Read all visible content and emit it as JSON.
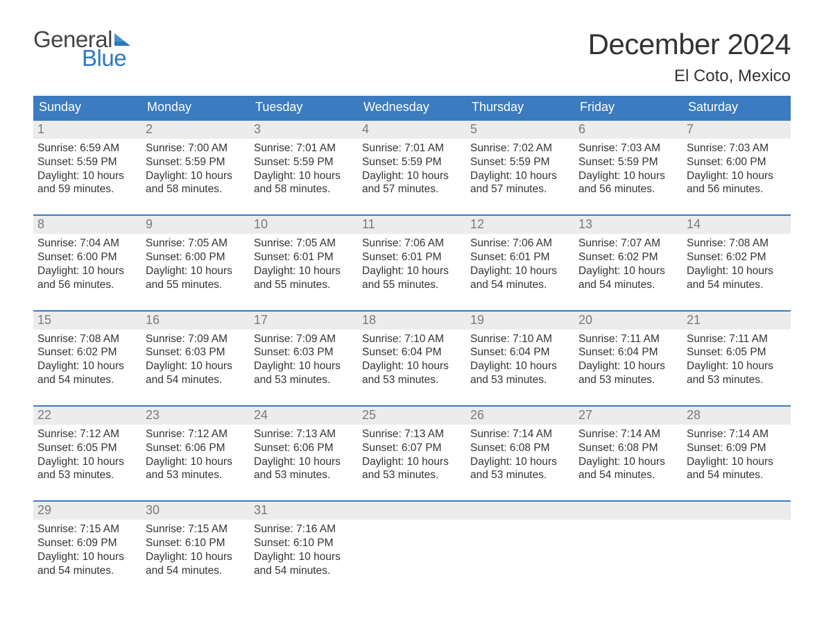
{
  "logo": {
    "text1": "General",
    "text2": "Blue",
    "icon_color": "#2c78bd",
    "text1_color": "#444444"
  },
  "title": "December 2024",
  "subtitle": "El Coto, Mexico",
  "colors": {
    "header_bg": "#3b7bbf",
    "header_text": "#ffffff",
    "week_border": "#3b7bbf",
    "daynum_bg": "#ececec",
    "daynum_text": "#7a7a7a",
    "body_text": "#333333",
    "background": "#ffffff"
  },
  "typography": {
    "title_fontsize": 42,
    "subtitle_fontsize": 24,
    "weekday_fontsize": 18,
    "daynum_fontsize": 18,
    "cell_fontsize": 15.5,
    "logo_fontsize": 33
  },
  "weekdays": [
    "Sunday",
    "Monday",
    "Tuesday",
    "Wednesday",
    "Thursday",
    "Friday",
    "Saturday"
  ],
  "weeks": [
    [
      {
        "n": "1",
        "sunrise": "Sunrise: 6:59 AM",
        "sunset": "Sunset: 5:59 PM",
        "dl1": "Daylight: 10 hours",
        "dl2": "and 59 minutes."
      },
      {
        "n": "2",
        "sunrise": "Sunrise: 7:00 AM",
        "sunset": "Sunset: 5:59 PM",
        "dl1": "Daylight: 10 hours",
        "dl2": "and 58 minutes."
      },
      {
        "n": "3",
        "sunrise": "Sunrise: 7:01 AM",
        "sunset": "Sunset: 5:59 PM",
        "dl1": "Daylight: 10 hours",
        "dl2": "and 58 minutes."
      },
      {
        "n": "4",
        "sunrise": "Sunrise: 7:01 AM",
        "sunset": "Sunset: 5:59 PM",
        "dl1": "Daylight: 10 hours",
        "dl2": "and 57 minutes."
      },
      {
        "n": "5",
        "sunrise": "Sunrise: 7:02 AM",
        "sunset": "Sunset: 5:59 PM",
        "dl1": "Daylight: 10 hours",
        "dl2": "and 57 minutes."
      },
      {
        "n": "6",
        "sunrise": "Sunrise: 7:03 AM",
        "sunset": "Sunset: 5:59 PM",
        "dl1": "Daylight: 10 hours",
        "dl2": "and 56 minutes."
      },
      {
        "n": "7",
        "sunrise": "Sunrise: 7:03 AM",
        "sunset": "Sunset: 6:00 PM",
        "dl1": "Daylight: 10 hours",
        "dl2": "and 56 minutes."
      }
    ],
    [
      {
        "n": "8",
        "sunrise": "Sunrise: 7:04 AM",
        "sunset": "Sunset: 6:00 PM",
        "dl1": "Daylight: 10 hours",
        "dl2": "and 56 minutes."
      },
      {
        "n": "9",
        "sunrise": "Sunrise: 7:05 AM",
        "sunset": "Sunset: 6:00 PM",
        "dl1": "Daylight: 10 hours",
        "dl2": "and 55 minutes."
      },
      {
        "n": "10",
        "sunrise": "Sunrise: 7:05 AM",
        "sunset": "Sunset: 6:01 PM",
        "dl1": "Daylight: 10 hours",
        "dl2": "and 55 minutes."
      },
      {
        "n": "11",
        "sunrise": "Sunrise: 7:06 AM",
        "sunset": "Sunset: 6:01 PM",
        "dl1": "Daylight: 10 hours",
        "dl2": "and 55 minutes."
      },
      {
        "n": "12",
        "sunrise": "Sunrise: 7:06 AM",
        "sunset": "Sunset: 6:01 PM",
        "dl1": "Daylight: 10 hours",
        "dl2": "and 54 minutes."
      },
      {
        "n": "13",
        "sunrise": "Sunrise: 7:07 AM",
        "sunset": "Sunset: 6:02 PM",
        "dl1": "Daylight: 10 hours",
        "dl2": "and 54 minutes."
      },
      {
        "n": "14",
        "sunrise": "Sunrise: 7:08 AM",
        "sunset": "Sunset: 6:02 PM",
        "dl1": "Daylight: 10 hours",
        "dl2": "and 54 minutes."
      }
    ],
    [
      {
        "n": "15",
        "sunrise": "Sunrise: 7:08 AM",
        "sunset": "Sunset: 6:02 PM",
        "dl1": "Daylight: 10 hours",
        "dl2": "and 54 minutes."
      },
      {
        "n": "16",
        "sunrise": "Sunrise: 7:09 AM",
        "sunset": "Sunset: 6:03 PM",
        "dl1": "Daylight: 10 hours",
        "dl2": "and 54 minutes."
      },
      {
        "n": "17",
        "sunrise": "Sunrise: 7:09 AM",
        "sunset": "Sunset: 6:03 PM",
        "dl1": "Daylight: 10 hours",
        "dl2": "and 53 minutes."
      },
      {
        "n": "18",
        "sunrise": "Sunrise: 7:10 AM",
        "sunset": "Sunset: 6:04 PM",
        "dl1": "Daylight: 10 hours",
        "dl2": "and 53 minutes."
      },
      {
        "n": "19",
        "sunrise": "Sunrise: 7:10 AM",
        "sunset": "Sunset: 6:04 PM",
        "dl1": "Daylight: 10 hours",
        "dl2": "and 53 minutes."
      },
      {
        "n": "20",
        "sunrise": "Sunrise: 7:11 AM",
        "sunset": "Sunset: 6:04 PM",
        "dl1": "Daylight: 10 hours",
        "dl2": "and 53 minutes."
      },
      {
        "n": "21",
        "sunrise": "Sunrise: 7:11 AM",
        "sunset": "Sunset: 6:05 PM",
        "dl1": "Daylight: 10 hours",
        "dl2": "and 53 minutes."
      }
    ],
    [
      {
        "n": "22",
        "sunrise": "Sunrise: 7:12 AM",
        "sunset": "Sunset: 6:05 PM",
        "dl1": "Daylight: 10 hours",
        "dl2": "and 53 minutes."
      },
      {
        "n": "23",
        "sunrise": "Sunrise: 7:12 AM",
        "sunset": "Sunset: 6:06 PM",
        "dl1": "Daylight: 10 hours",
        "dl2": "and 53 minutes."
      },
      {
        "n": "24",
        "sunrise": "Sunrise: 7:13 AM",
        "sunset": "Sunset: 6:06 PM",
        "dl1": "Daylight: 10 hours",
        "dl2": "and 53 minutes."
      },
      {
        "n": "25",
        "sunrise": "Sunrise: 7:13 AM",
        "sunset": "Sunset: 6:07 PM",
        "dl1": "Daylight: 10 hours",
        "dl2": "and 53 minutes."
      },
      {
        "n": "26",
        "sunrise": "Sunrise: 7:14 AM",
        "sunset": "Sunset: 6:08 PM",
        "dl1": "Daylight: 10 hours",
        "dl2": "and 53 minutes."
      },
      {
        "n": "27",
        "sunrise": "Sunrise: 7:14 AM",
        "sunset": "Sunset: 6:08 PM",
        "dl1": "Daylight: 10 hours",
        "dl2": "and 54 minutes."
      },
      {
        "n": "28",
        "sunrise": "Sunrise: 7:14 AM",
        "sunset": "Sunset: 6:09 PM",
        "dl1": "Daylight: 10 hours",
        "dl2": "and 54 minutes."
      }
    ],
    [
      {
        "n": "29",
        "sunrise": "Sunrise: 7:15 AM",
        "sunset": "Sunset: 6:09 PM",
        "dl1": "Daylight: 10 hours",
        "dl2": "and 54 minutes."
      },
      {
        "n": "30",
        "sunrise": "Sunrise: 7:15 AM",
        "sunset": "Sunset: 6:10 PM",
        "dl1": "Daylight: 10 hours",
        "dl2": "and 54 minutes."
      },
      {
        "n": "31",
        "sunrise": "Sunrise: 7:16 AM",
        "sunset": "Sunset: 6:10 PM",
        "dl1": "Daylight: 10 hours",
        "dl2": "and 54 minutes."
      },
      null,
      null,
      null,
      null
    ]
  ]
}
